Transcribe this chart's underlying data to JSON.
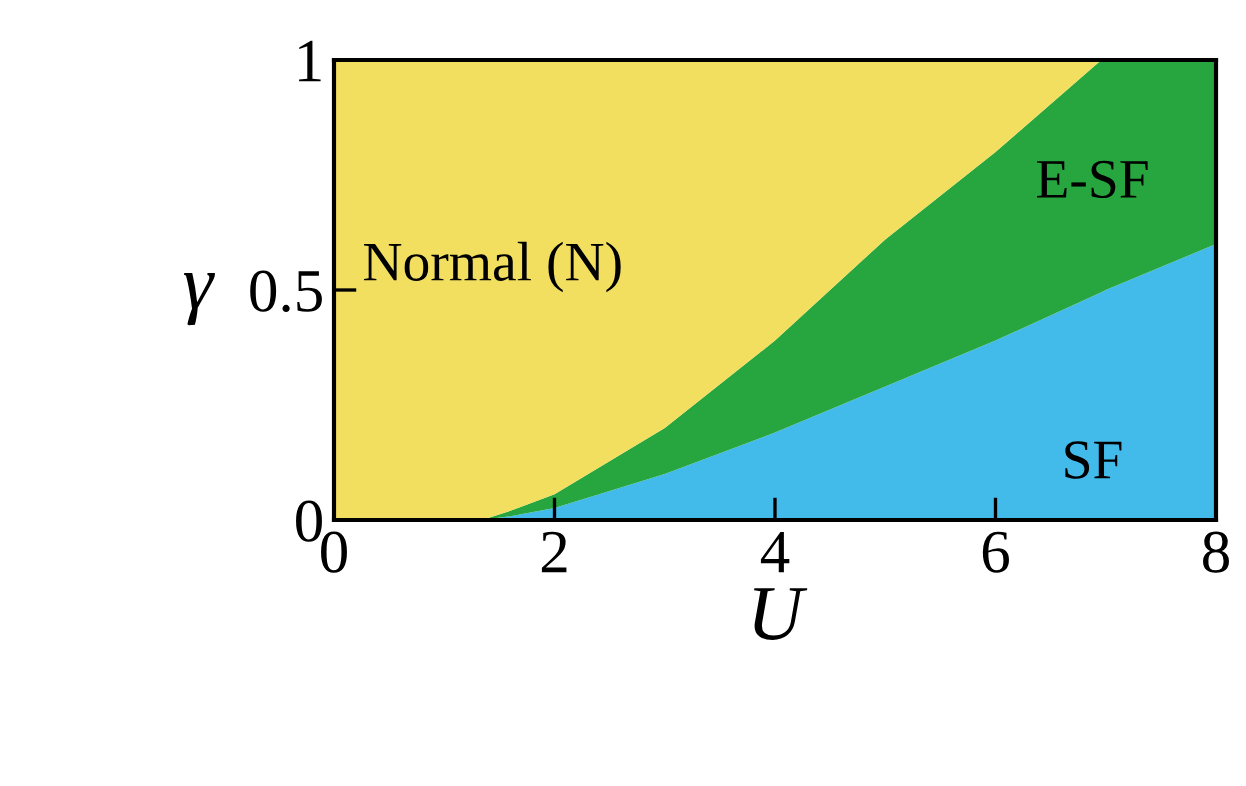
{
  "chart_data": {
    "type": "area",
    "stacked": true,
    "xlabel": "U",
    "ylabel": "γ",
    "legend": false,
    "grid": false,
    "x": [
      0,
      1.34,
      1.6,
      2,
      3,
      4,
      5,
      6,
      6.96,
      7,
      8
    ],
    "series": [
      {
        "name": "SF",
        "color": "#42bbea",
        "values": [
          0,
          0,
          0.008,
          0.026,
          0.1,
          0.19,
          0.29,
          0.39,
          0.495,
          0.5,
          0.6
        ]
      },
      {
        "name": "E-SF",
        "color": "#27a640",
        "values": [
          0,
          0,
          0.012,
          0.03,
          0.1,
          0.2,
          0.32,
          0.41,
          0.505,
          0.5,
          0.4
        ]
      },
      {
        "name": "Normal (N)",
        "color": "#f3df5f",
        "values": [
          1,
          1,
          0.98,
          0.944,
          0.8,
          0.61,
          0.39,
          0.2,
          0,
          null,
          null
        ]
      }
    ],
    "xlim": [
      0,
      8
    ],
    "ylim": [
      0,
      1
    ],
    "xticks": [
      0,
      2,
      4,
      6,
      8
    ],
    "yticks": [
      0,
      0.5,
      1
    ]
  }
}
